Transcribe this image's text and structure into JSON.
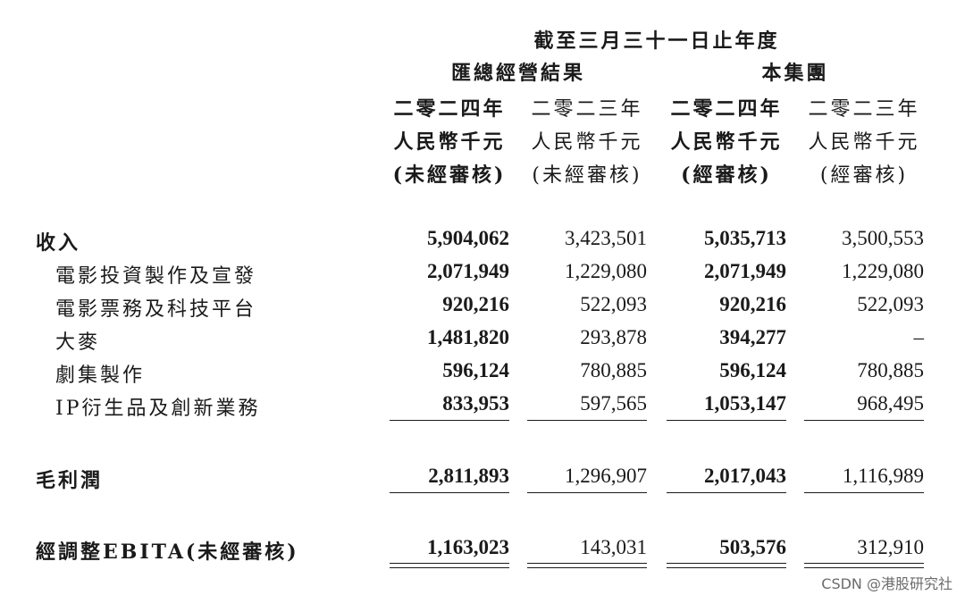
{
  "header": {
    "period": "截至三月三十一日止年度",
    "group_consolidated": "匯總經營結果",
    "group_company": "本集團",
    "columns": [
      {
        "year": "二零二四年",
        "currency": "人民幣千元",
        "audit": "(未經審核)",
        "bold": true
      },
      {
        "year": "二零二三年",
        "currency": "人民幣千元",
        "audit": "(未經審核)",
        "bold": false
      },
      {
        "year": "二零二四年",
        "currency": "人民幣千元",
        "audit": "(經審核)",
        "bold": true
      },
      {
        "year": "二零二三年",
        "currency": "人民幣千元",
        "audit": "(經審核)",
        "bold": false
      }
    ]
  },
  "rows": [
    {
      "label": "收入",
      "values": [
        "5,904,062",
        "3,423,501",
        "5,035,713",
        "3,500,553"
      ]
    },
    {
      "label": "電影投資製作及宣發",
      "values": [
        "2,071,949",
        "1,229,080",
        "2,071,949",
        "1,229,080"
      ]
    },
    {
      "label": "電影票務及科技平台",
      "values": [
        "920,216",
        "522,093",
        "920,216",
        "522,093"
      ]
    },
    {
      "label": "大麥",
      "values": [
        "1,481,820",
        "293,878",
        "394,277",
        "–"
      ]
    },
    {
      "label": "劇集製作",
      "values": [
        "596,124",
        "780,885",
        "596,124",
        "780,885"
      ]
    },
    {
      "label": "IP衍生品及創新業務",
      "values": [
        "833,953",
        "597,565",
        "1,053,147",
        "968,495"
      ]
    },
    {
      "label": "毛利潤",
      "values": [
        "2,811,893",
        "1,296,907",
        "2,017,043",
        "1,116,989"
      ]
    },
    {
      "label": "經調整EBITA(未經審核)",
      "values": [
        "1,163,023",
        "143,031",
        "503,576",
        "312,910"
      ]
    }
  ],
  "watermark": "CSDN @港股研究社"
}
